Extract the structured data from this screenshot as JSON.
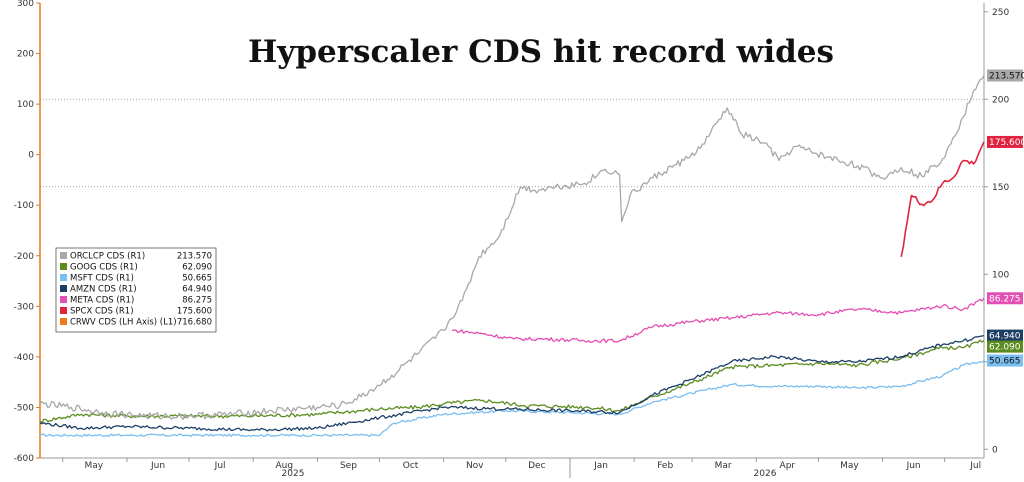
{
  "title": "Hyperscaler CDS hit record wides",
  "colors": {
    "ORCLCP": "#a8a8a8",
    "GOOG": "#5b8c1e",
    "MSFT": "#7bbef0",
    "AMZN": "#1c3f66",
    "META": "#e44fb3",
    "SPCX": "#e0243f",
    "CRWV": "#ef7a1e",
    "axis": "#e07820"
  },
  "chart_data": {
    "type": "line",
    "title": "Hyperscaler CDS hit record wides",
    "x_ticks": [
      "May",
      "Jun",
      "Jul",
      "Aug",
      "Sep",
      "Oct",
      "Nov",
      "Dec",
      "Jan",
      "Feb",
      "Mar",
      "Apr",
      "May",
      "Jun",
      "Jul"
    ],
    "year_labels": [
      "2025",
      "2026"
    ],
    "left_axis": {
      "label": "L1",
      "ylim": [
        -600,
        300
      ],
      "ticks": [
        "300",
        "200",
        "100",
        "0",
        "-100",
        "-200",
        "-300",
        "-400",
        "-500",
        "-600"
      ]
    },
    "right_axis": {
      "label": "R1",
      "ylim": [
        -5,
        255
      ],
      "ticks": [
        "250",
        "200",
        "150",
        "100",
        "50",
        "0"
      ]
    },
    "x_range": [
      "2025-04-20",
      "2026-07-20"
    ],
    "series": [
      {
        "name": "ORCLCP CDS (R1)",
        "key": "ORCLCP",
        "axis": "R1",
        "last": "213.570",
        "points": [
          [
            "2025-04-20",
            26
          ],
          [
            "2025-05-05",
            24
          ],
          [
            "2025-05-20",
            21
          ],
          [
            "2025-06-10",
            19
          ],
          [
            "2025-07-01",
            19
          ],
          [
            "2025-07-20",
            20
          ],
          [
            "2025-08-10",
            22
          ],
          [
            "2025-09-01",
            24
          ],
          [
            "2025-09-12",
            25
          ],
          [
            "2025-09-22",
            30
          ],
          [
            "2025-10-05",
            40
          ],
          [
            "2025-10-20",
            55
          ],
          [
            "2025-11-01",
            68
          ],
          [
            "2025-11-10",
            85
          ],
          [
            "2025-11-18",
            110
          ],
          [
            "2025-11-28",
            122
          ],
          [
            "2025-12-08",
            150
          ],
          [
            "2025-12-15",
            148
          ],
          [
            "2025-12-25",
            150
          ],
          [
            "2026-01-08",
            152
          ],
          [
            "2026-01-18",
            160
          ],
          [
            "2026-01-25",
            157
          ],
          [
            "2026-01-26",
            130
          ],
          [
            "2026-01-30",
            145
          ],
          [
            "2026-02-10",
            155
          ],
          [
            "2026-02-25",
            165
          ],
          [
            "2026-03-05",
            172
          ],
          [
            "2026-03-18",
            195
          ],
          [
            "2026-03-25",
            180
          ],
          [
            "2026-04-05",
            175
          ],
          [
            "2026-04-12",
            165
          ],
          [
            "2026-04-20",
            173
          ],
          [
            "2026-05-05",
            167
          ],
          [
            "2026-05-20",
            162
          ],
          [
            "2026-06-01",
            155
          ],
          [
            "2026-06-10",
            161
          ],
          [
            "2026-06-20",
            156
          ],
          [
            "2026-06-30",
            166
          ],
          [
            "2026-07-05",
            178
          ],
          [
            "2026-07-10",
            190
          ],
          [
            "2026-07-15",
            205
          ],
          [
            "2026-07-20",
            213.57
          ]
        ]
      },
      {
        "name": "GOOG CDS (R1)",
        "key": "GOOG",
        "axis": "R1",
        "last": "62.090",
        "points": [
          [
            "2025-04-20",
            16
          ],
          [
            "2025-05-10",
            20
          ],
          [
            "2025-06-01",
            19
          ],
          [
            "2025-07-01",
            19
          ],
          [
            "2025-08-01",
            19
          ],
          [
            "2025-09-01",
            20
          ],
          [
            "2025-10-01",
            23
          ],
          [
            "2025-10-20",
            24
          ],
          [
            "2025-11-01",
            26
          ],
          [
            "2025-11-20",
            28
          ],
          [
            "2025-12-10",
            25
          ],
          [
            "2026-01-10",
            24
          ],
          [
            "2026-01-25",
            22
          ],
          [
            "2026-02-10",
            30
          ],
          [
            "2026-03-01",
            38
          ],
          [
            "2026-03-20",
            47
          ],
          [
            "2026-04-10",
            48
          ],
          [
            "2026-05-01",
            49
          ],
          [
            "2026-05-20",
            48
          ],
          [
            "2026-06-10",
            52
          ],
          [
            "2026-06-30",
            58
          ],
          [
            "2026-07-10",
            58
          ],
          [
            "2026-07-20",
            62.09
          ]
        ]
      },
      {
        "name": "MSFT CDS (R1)",
        "key": "MSFT",
        "axis": "R1",
        "last": "50.665",
        "points": [
          [
            "2025-04-20",
            8
          ],
          [
            "2025-06-01",
            8
          ],
          [
            "2025-07-01",
            8
          ],
          [
            "2025-08-01",
            8
          ],
          [
            "2025-09-01",
            8
          ],
          [
            "2025-10-01",
            8
          ],
          [
            "2025-10-08",
            15
          ],
          [
            "2025-11-01",
            20
          ],
          [
            "2025-12-01",
            22
          ],
          [
            "2026-01-01",
            21
          ],
          [
            "2026-01-25",
            20
          ],
          [
            "2026-02-10",
            27
          ],
          [
            "2026-03-01",
            32
          ],
          [
            "2026-03-20",
            37
          ],
          [
            "2026-04-10",
            36
          ],
          [
            "2026-05-01",
            36
          ],
          [
            "2026-05-20",
            35
          ],
          [
            "2026-06-10",
            36
          ],
          [
            "2026-06-30",
            42
          ],
          [
            "2026-07-10",
            48
          ],
          [
            "2026-07-20",
            50.665
          ]
        ]
      },
      {
        "name": "AMZN CDS (R1)",
        "key": "AMZN",
        "axis": "R1",
        "last": "64.940",
        "points": [
          [
            "2025-04-20",
            15
          ],
          [
            "2025-05-10",
            12
          ],
          [
            "2025-06-01",
            13
          ],
          [
            "2025-07-01",
            12
          ],
          [
            "2025-08-01",
            11
          ],
          [
            "2025-09-01",
            12
          ],
          [
            "2025-10-01",
            18
          ],
          [
            "2025-11-01",
            24
          ],
          [
            "2025-12-01",
            23
          ],
          [
            "2026-01-01",
            22
          ],
          [
            "2026-01-25",
            21
          ],
          [
            "2026-02-10",
            31
          ],
          [
            "2026-03-01",
            40
          ],
          [
            "2026-03-20",
            50
          ],
          [
            "2026-04-10",
            53
          ],
          [
            "2026-05-01",
            50
          ],
          [
            "2026-05-20",
            50
          ],
          [
            "2026-06-10",
            53
          ],
          [
            "2026-06-30",
            60
          ],
          [
            "2026-07-10",
            62
          ],
          [
            "2026-07-20",
            64.94
          ]
        ]
      },
      {
        "name": "META CDS (R1)",
        "key": "META",
        "axis": "R1",
        "last": "86.275",
        "points": [
          [
            "2025-11-05",
            68
          ],
          [
            "2025-11-20",
            66
          ],
          [
            "2025-12-05",
            63
          ],
          [
            "2025-12-20",
            63
          ],
          [
            "2026-01-10",
            62
          ],
          [
            "2026-01-25",
            62
          ],
          [
            "2026-02-10",
            70
          ],
          [
            "2026-03-01",
            73
          ],
          [
            "2026-03-20",
            75
          ],
          [
            "2026-04-10",
            78
          ],
          [
            "2026-05-01",
            77
          ],
          [
            "2026-05-20",
            80
          ],
          [
            "2026-06-10",
            78
          ],
          [
            "2026-06-30",
            82
          ],
          [
            "2026-07-10",
            80
          ],
          [
            "2026-07-20",
            86.275
          ]
        ]
      },
      {
        "name": "SPCX CDS (R1)",
        "key": "SPCX",
        "axis": "R1",
        "last": "175.600",
        "points": [
          [
            "2026-06-10",
            110
          ],
          [
            "2026-06-15",
            145
          ],
          [
            "2026-06-20",
            140
          ],
          [
            "2026-06-25",
            142
          ],
          [
            "2026-06-30",
            152
          ],
          [
            "2026-07-05",
            155
          ],
          [
            "2026-07-10",
            165
          ],
          [
            "2026-07-15",
            163
          ],
          [
            "2026-07-20",
            175.6
          ]
        ]
      },
      {
        "name": "CRWV CDS (LH Axis) (L1)",
        "key": "CRWV",
        "axis": "L1",
        "last": "716.680",
        "points": []
      }
    ],
    "legend_position": "left-middle",
    "right_badges": [
      {
        "key": "ORCLCP",
        "text": "213.570"
      },
      {
        "key": "SPCX",
        "text": "175.600"
      },
      {
        "key": "META",
        "text": "86.275"
      },
      {
        "key": "AMZN",
        "text": "64.940"
      },
      {
        "key": "GOOG",
        "text": "62.090"
      },
      {
        "key": "MSFT",
        "text": "50.665"
      }
    ]
  }
}
